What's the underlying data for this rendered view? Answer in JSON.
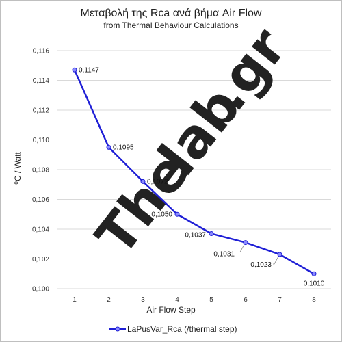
{
  "chart_data": {
    "type": "line",
    "title": "Μεταβολή της Rca ανά βήμα Air Flow",
    "subtitle": "from Thermal Behaviour Calculations",
    "xlabel": "Air Flow Step",
    "ylabel": "⁰C / Watt",
    "categories": [
      "1",
      "2",
      "3",
      "4",
      "5",
      "6",
      "7",
      "8"
    ],
    "ylim": [
      0.1,
      0.116
    ],
    "yticks": [
      "0,100",
      "0,102",
      "0,104",
      "0,106",
      "0,108",
      "0,110",
      "0,112",
      "0,114",
      "0,116"
    ],
    "grid": true,
    "legend_position": "bottom",
    "series": [
      {
        "name": "LaPusVar_Rca (/thermal step)",
        "values": [
          0.1147,
          0.1095,
          0.1072,
          0.105,
          0.1037,
          0.1031,
          0.1023,
          0.101
        ],
        "labels": [
          "0,1147",
          "0,1095",
          "0,1072",
          "0,1050",
          "0,1037",
          "0,1031",
          "0,1023",
          "0,1010"
        ],
        "color": "#1f1fd6"
      }
    ]
  },
  "watermark": {
    "text_the": "The",
    "text_lab": "lab",
    "text_gr": ".gr",
    "color_main": "#e6e6e6",
    "color_accent": "#f7d9a8"
  }
}
